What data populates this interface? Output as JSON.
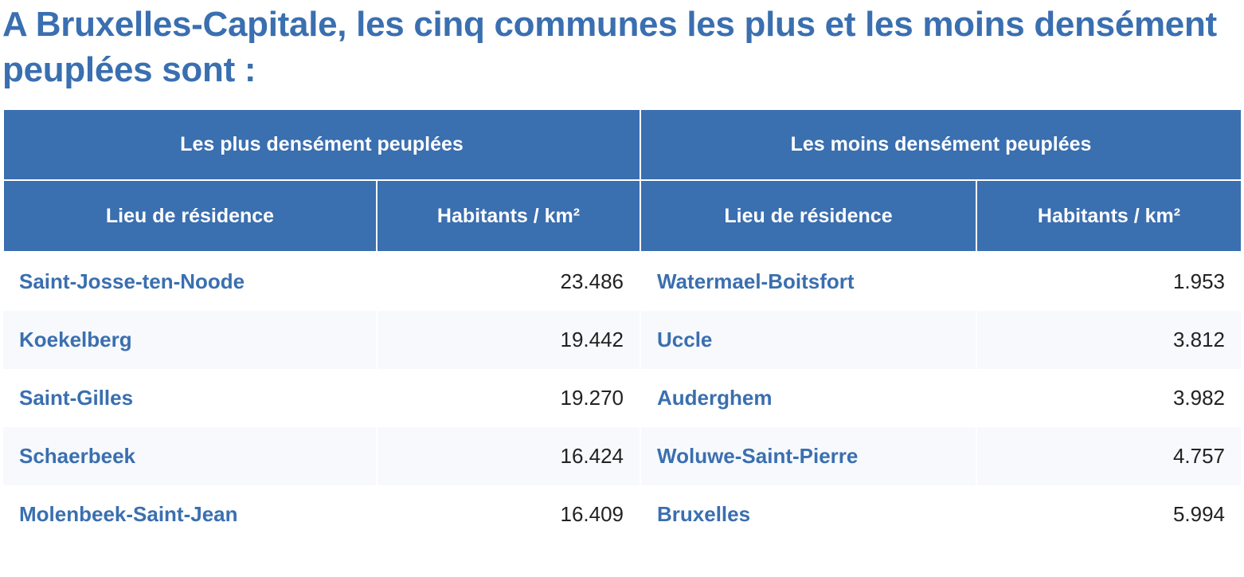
{
  "title": "A Bruxelles-Capitale, les cinq communes les plus et les moins densément peuplées sont :",
  "table": {
    "groups": [
      "Les plus densément peuplées",
      "Les moins densément peuplées"
    ],
    "headers": [
      "Lieu de résidence",
      "Habitants / km²",
      "Lieu de résidence",
      "Habitants / km²"
    ],
    "rows": [
      [
        "Saint-Josse-ten-Noode",
        "23.486",
        "Watermael-Boitsfort",
        "1.953"
      ],
      [
        "Koekelberg",
        "19.442",
        "Uccle",
        "3.812"
      ],
      [
        "Saint-Gilles",
        "19.270",
        "Auderghem",
        "3.982"
      ],
      [
        "Schaerbeek",
        "16.424",
        "Woluwe-Saint-Pierre",
        "4.757"
      ],
      [
        "Molenbeek-Saint-Jean",
        "16.409",
        "Bruxelles",
        "5.994"
      ]
    ]
  },
  "colors": {
    "accent": "#3a6fb0",
    "text": "#222222",
    "row_alt": "#f7f9fc"
  }
}
